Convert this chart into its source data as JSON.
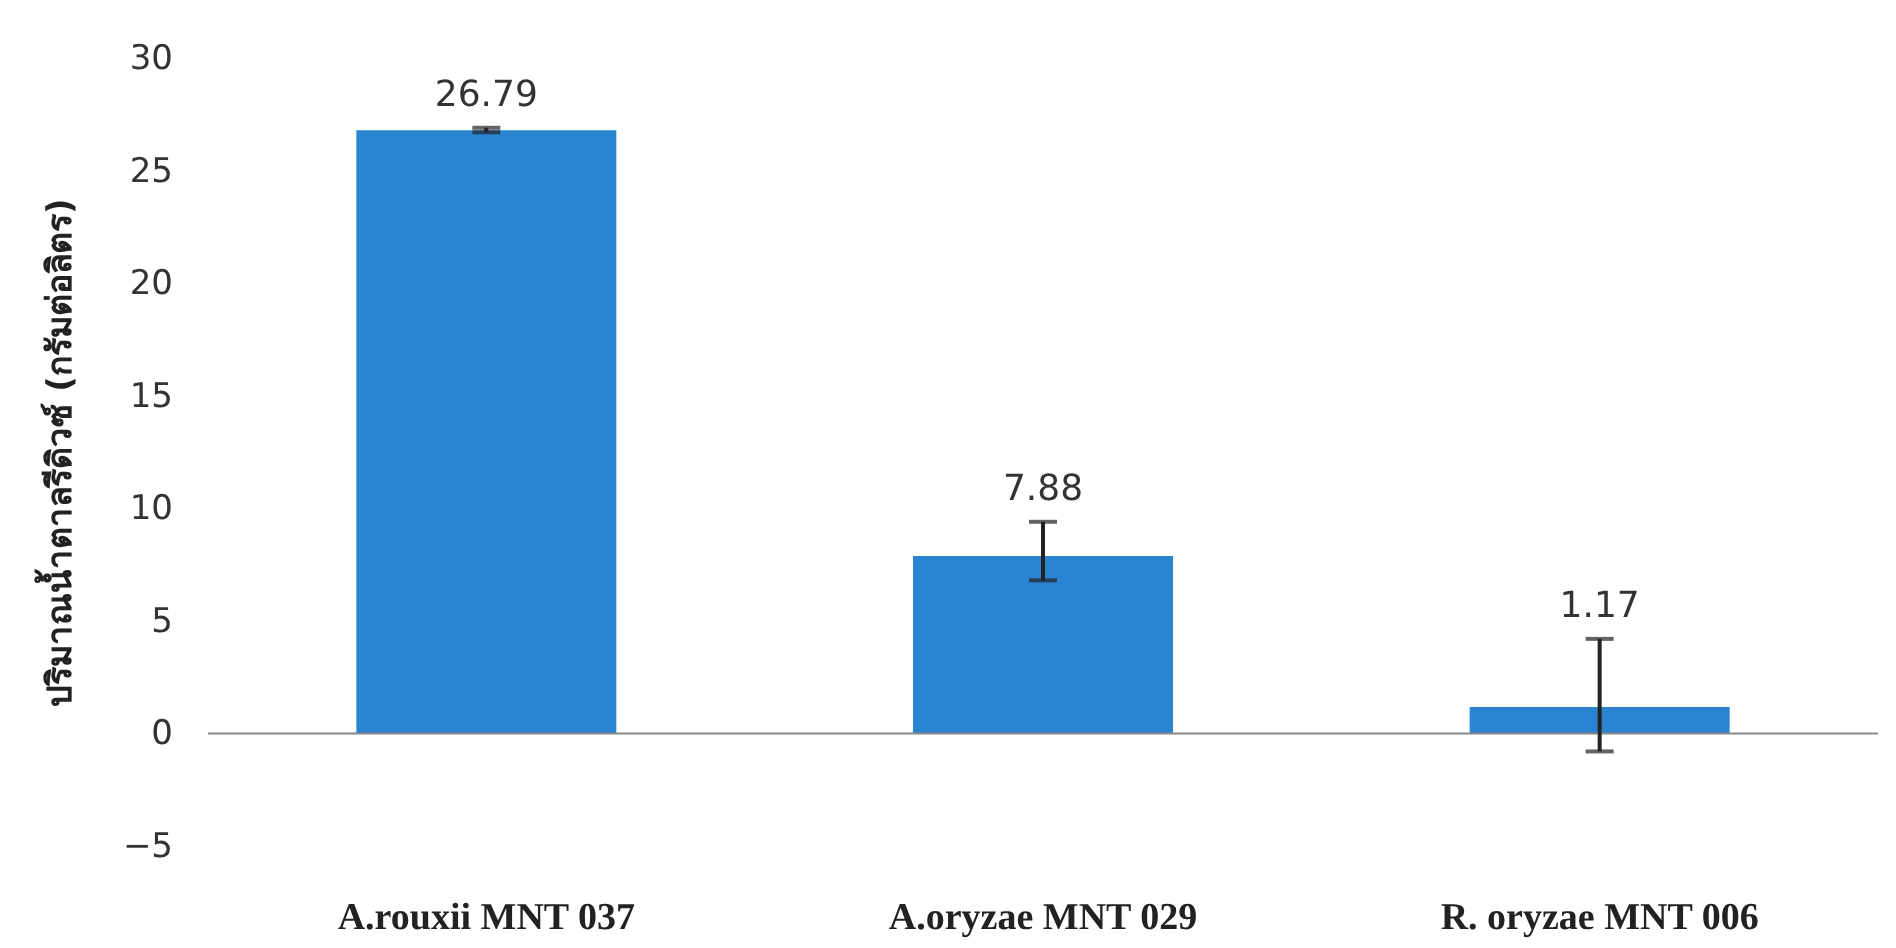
{
  "chart_data": {
    "type": "bar",
    "ylabel": "ปริมาณน้ำตาลรีดิวซ์ (กรัมต่อลิตร)",
    "categories": [
      "A.rouxii MNT 037",
      "A.oryzae MNT 029",
      "R. oryzae MNT 006"
    ],
    "values": [
      26.79,
      7.88,
      1.17
    ],
    "color": "#2a84d2",
    "errors": [
      [
        26.7,
        26.9
      ],
      [
        6.8,
        9.4
      ],
      [
        -0.8,
        4.2
      ]
    ],
    "data_labels": true,
    "ylim": [
      -5,
      30
    ],
    "yticks": [
      -5,
      0,
      5,
      10,
      15,
      20,
      25,
      30
    ],
    "ref_lines": [
      {
        "axis": "y",
        "value": 0
      }
    ],
    "grid": false
  }
}
